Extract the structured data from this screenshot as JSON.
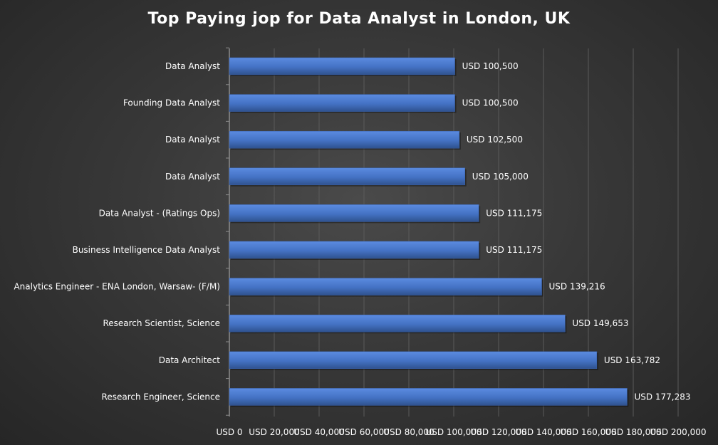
{
  "chart_data": {
    "type": "bar",
    "orientation": "horizontal",
    "title": "Top Paying jop for Data Analyst in London, UK",
    "xlabel": "",
    "ylabel": "",
    "categories": [
      "Data Analyst",
      "Founding Data Analyst",
      "Data Analyst",
      "Data Analyst",
      "Data Analyst - (Ratings Ops)",
      "Business Intelligence Data Analyst",
      "Analytics Engineer - ENA London, Warsaw- (F/M)",
      "Research Scientist, Science",
      "Data Architect",
      "Research Engineer, Science"
    ],
    "values": [
      100500,
      100500,
      102500,
      105000,
      111175,
      111175,
      139216,
      149653,
      163782,
      177283
    ],
    "value_labels": [
      "USD 100,500",
      "USD 100,500",
      "USD 102,500",
      "USD 105,000",
      "USD 111,175",
      "USD 111,175",
      "USD 139,216",
      "USD 149,653",
      "USD 163,782",
      "USD 177,283"
    ],
    "xlim": [
      0,
      200000
    ],
    "x_ticks": [
      0,
      20000,
      40000,
      60000,
      80000,
      100000,
      120000,
      140000,
      160000,
      180000,
      200000
    ],
    "x_tick_labels": [
      "USD 0",
      "USD 20,000",
      "USD 40,000",
      "USD 60,000",
      "USD 80,000",
      "USD 100,000",
      "USD 120,000",
      "USD 140,000",
      "USD 160,000",
      "USD 180,000",
      "USD 200,000"
    ],
    "grid": true,
    "legend": "none",
    "colors": {
      "bar": "#4472c4",
      "bar_highlight": "#5b8be0",
      "bar_shadow": "#2f528f",
      "text": "#ffffff",
      "grid": "#5a5a5a",
      "axis": "#8c8c8c"
    }
  }
}
